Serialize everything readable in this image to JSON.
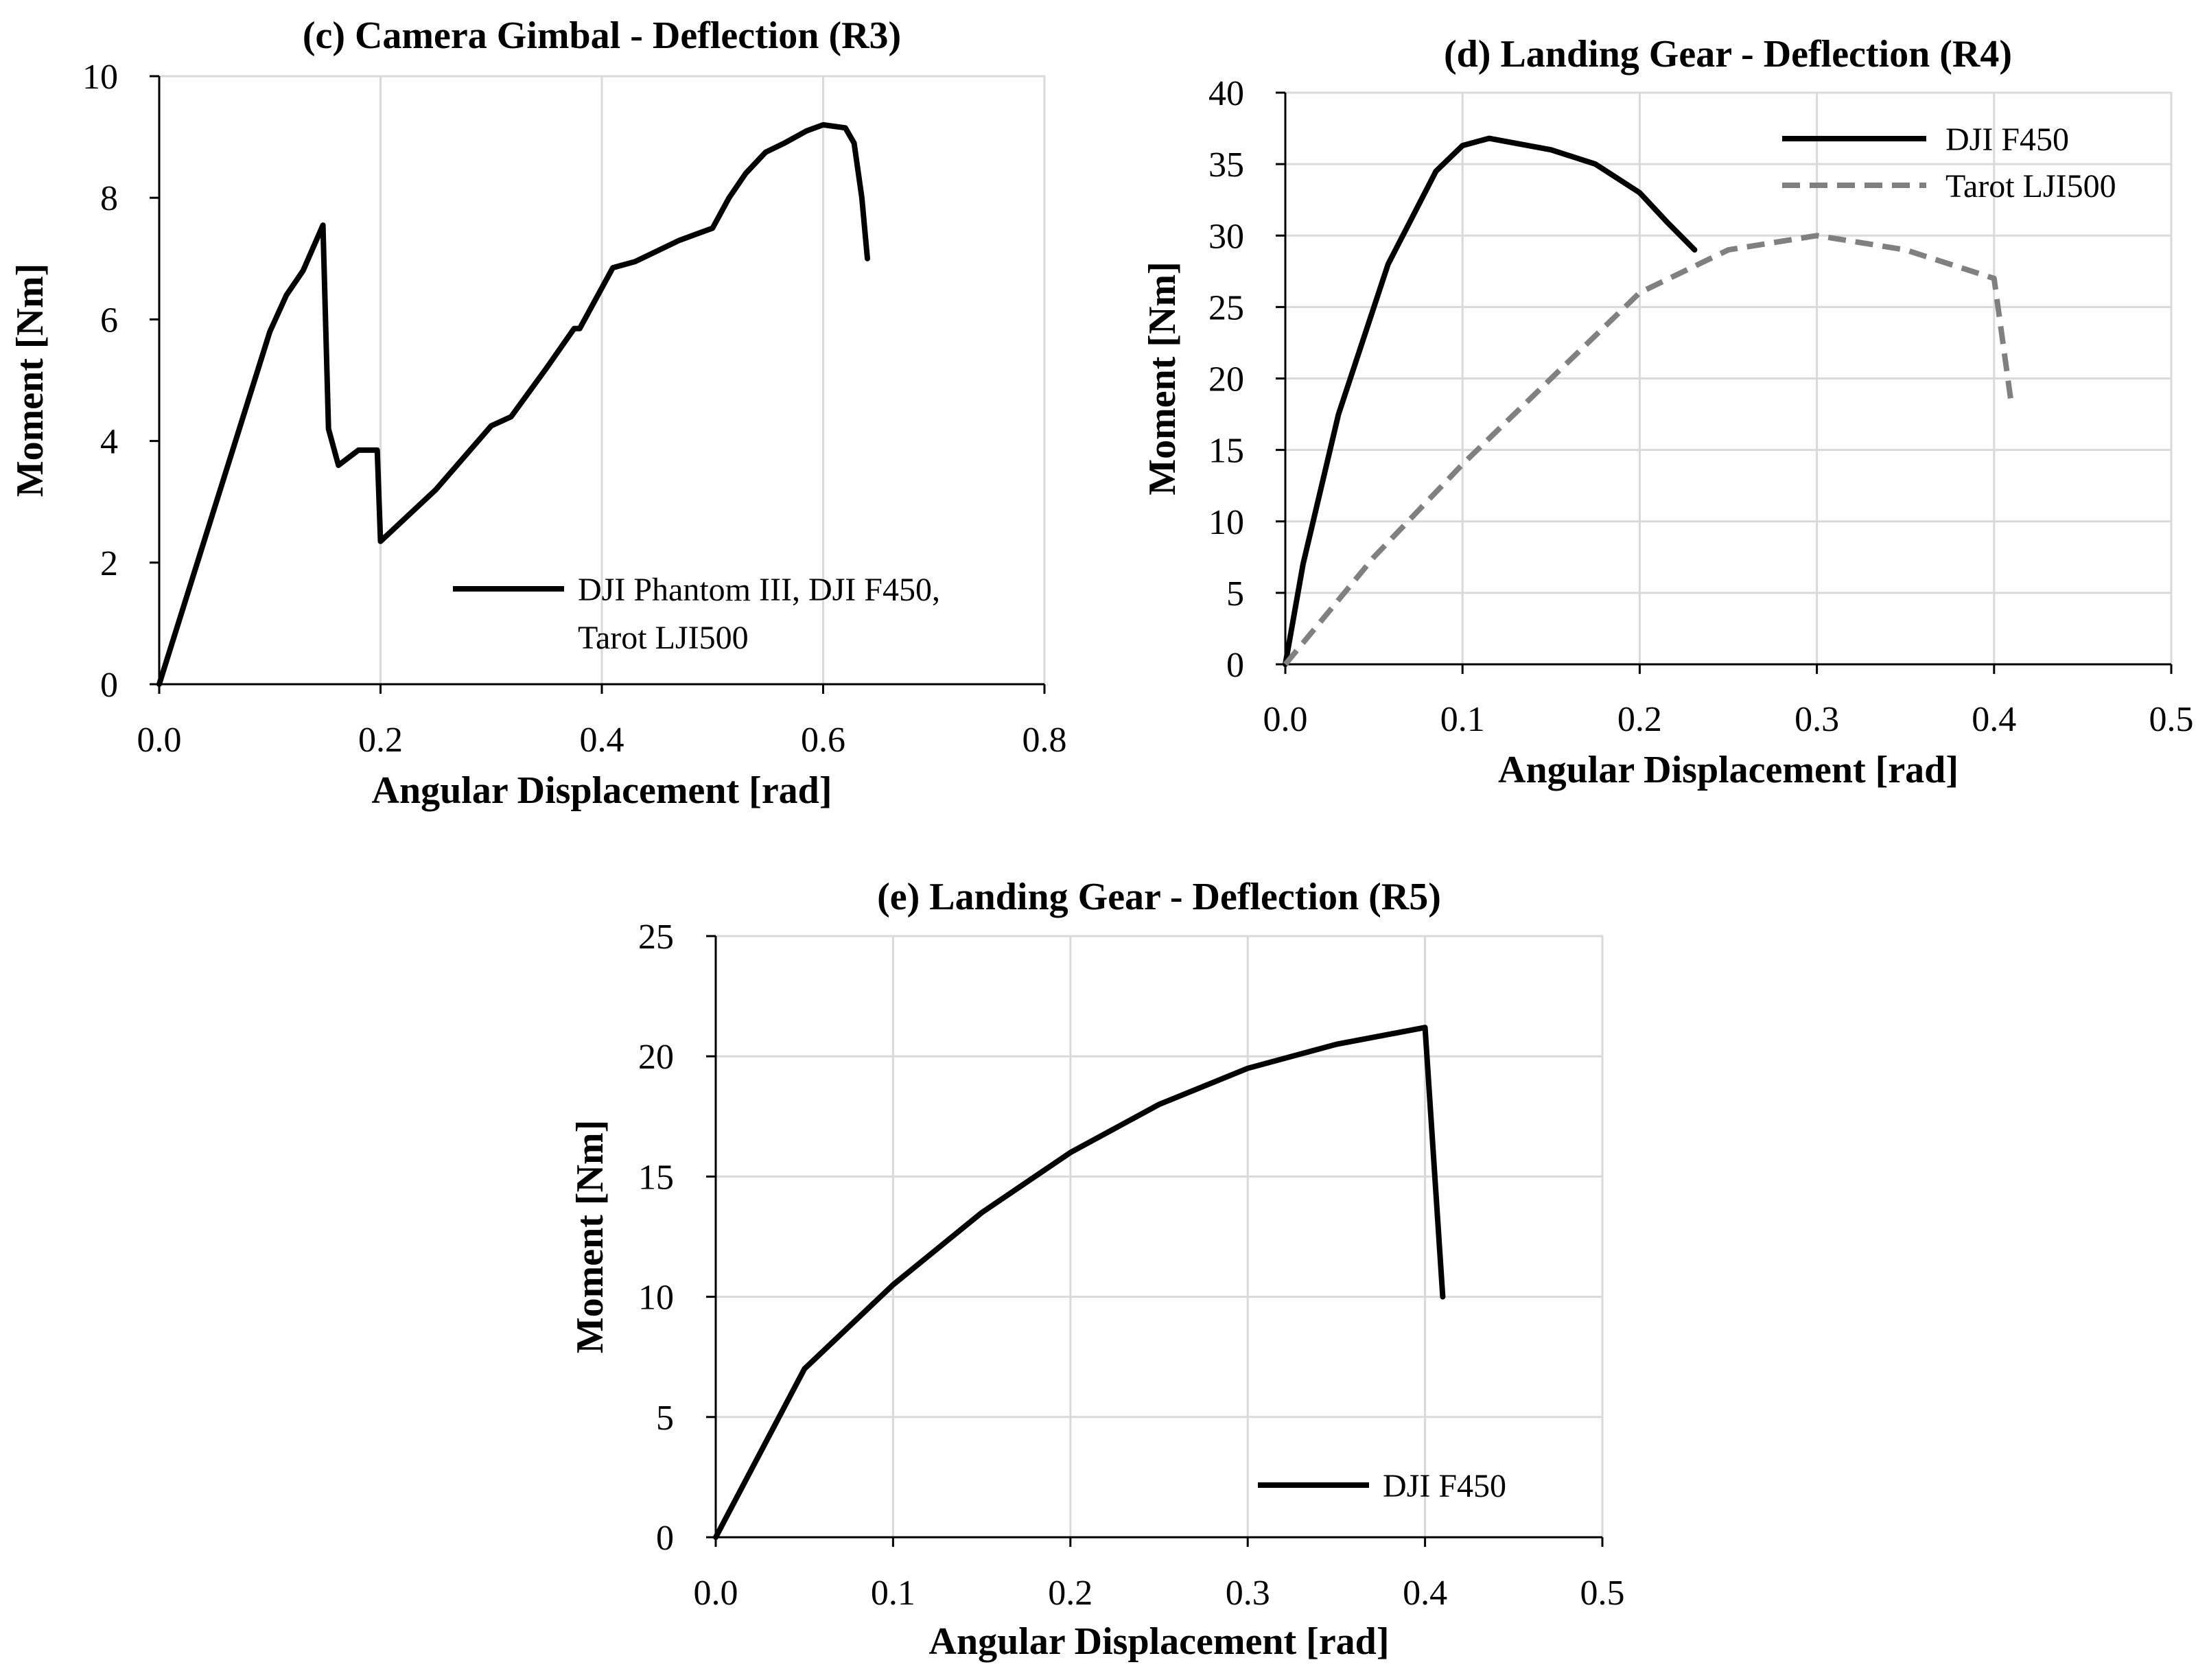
{
  "chart_data": [
    {
      "id": "c",
      "type": "line",
      "title": "(c) Camera Gimbal - Deflection (R3)",
      "xlabel": "Angular Displacement [rad]",
      "ylabel": "Moment [Nm]",
      "xlim": [
        0,
        0.8
      ],
      "ylim": [
        0,
        10
      ],
      "xticks": [
        0,
        0.2,
        0.4,
        0.6,
        0.8
      ],
      "xtick_labels": [
        "0.0",
        "0.2",
        "0.4",
        "0.6",
        "0.8"
      ],
      "yticks": [
        0,
        2,
        4,
        6,
        8,
        10
      ],
      "ytick_labels": [
        "0",
        "2",
        "4",
        "6",
        "8",
        "10"
      ],
      "grid": "vertical",
      "legend_position": "bottom-right",
      "series": [
        {
          "name": "DJI Phantom III, DJI F450, Tarot LJI500",
          "legend_lines": [
            "DJI Phantom III, DJI F450,",
            "Tarot LJI500"
          ],
          "color": "#000000",
          "dash": "solid",
          "points": [
            [
              0,
              0
            ],
            [
              0.05,
              2.9
            ],
            [
              0.1,
              5.8
            ],
            [
              0.115,
              6.4
            ],
            [
              0.13,
              6.8
            ],
            [
              0.148,
              7.55
            ],
            [
              0.153,
              4.2
            ],
            [
              0.162,
              3.6
            ],
            [
              0.18,
              3.85
            ],
            [
              0.197,
              3.85
            ],
            [
              0.2,
              2.35
            ],
            [
              0.25,
              3.2
            ],
            [
              0.3,
              4.25
            ],
            [
              0.318,
              4.4
            ],
            [
              0.35,
              5.2
            ],
            [
              0.375,
              5.85
            ],
            [
              0.38,
              5.85
            ],
            [
              0.41,
              6.85
            ],
            [
              0.43,
              6.95
            ],
            [
              0.47,
              7.3
            ],
            [
              0.5,
              7.5
            ],
            [
              0.515,
              8.0
            ],
            [
              0.53,
              8.4
            ],
            [
              0.548,
              8.75
            ],
            [
              0.565,
              8.9
            ],
            [
              0.585,
              9.1
            ],
            [
              0.6,
              9.2
            ],
            [
              0.62,
              9.15
            ],
            [
              0.628,
              8.9
            ],
            [
              0.635,
              8.0
            ],
            [
              0.64,
              7.0
            ]
          ]
        }
      ]
    },
    {
      "id": "d",
      "type": "line",
      "title": "(d) Landing Gear - Deflection (R4)",
      "xlabel": "Angular Displacement [rad]",
      "ylabel": "Moment [Nm]",
      "xlim": [
        0,
        0.5
      ],
      "ylim": [
        0,
        40
      ],
      "xticks": [
        0,
        0.1,
        0.2,
        0.3,
        0.4,
        0.5
      ],
      "xtick_labels": [
        "0.0",
        "0.1",
        "0.2",
        "0.3",
        "0.4",
        "0.5"
      ],
      "yticks": [
        0,
        5,
        10,
        15,
        20,
        25,
        30,
        35,
        40
      ],
      "ytick_labels": [
        "0",
        "5",
        "10",
        "15",
        "20",
        "25",
        "30",
        "35",
        "40"
      ],
      "grid": "both",
      "legend_position": "top-right",
      "series": [
        {
          "name": "DJI F450",
          "legend_lines": [
            "DJI F450"
          ],
          "color": "#000000",
          "dash": "solid",
          "points": [
            [
              0,
              0
            ],
            [
              0.01,
              7
            ],
            [
              0.03,
              17.5
            ],
            [
              0.058,
              28
            ],
            [
              0.085,
              34.5
            ],
            [
              0.1,
              36.3
            ],
            [
              0.115,
              36.8
            ],
            [
              0.15,
              36
            ],
            [
              0.175,
              35
            ],
            [
              0.2,
              33
            ],
            [
              0.215,
              31
            ],
            [
              0.231,
              29
            ]
          ]
        },
        {
          "name": "Tarot LJI500",
          "legend_lines": [
            "Tarot LJI500"
          ],
          "color": "#808080",
          "dash": "dashed",
          "points": [
            [
              0,
              0
            ],
            [
              0.05,
              7.5
            ],
            [
              0.1,
              14
            ],
            [
              0.15,
              20
            ],
            [
              0.2,
              26
            ],
            [
              0.25,
              29
            ],
            [
              0.3,
              30
            ],
            [
              0.35,
              29
            ],
            [
              0.4,
              27
            ],
            [
              0.41,
              18
            ]
          ]
        }
      ]
    },
    {
      "id": "e",
      "type": "line",
      "title": "(e) Landing Gear - Deflection (R5)",
      "xlabel": "Angular Displacement [rad]",
      "ylabel": "Moment [Nm]",
      "xlim": [
        0,
        0.5
      ],
      "ylim": [
        0,
        25
      ],
      "xticks": [
        0,
        0.1,
        0.2,
        0.3,
        0.4,
        0.5
      ],
      "xtick_labels": [
        "0.0",
        "0.1",
        "0.2",
        "0.3",
        "0.4",
        "0.5"
      ],
      "yticks": [
        0,
        5,
        10,
        15,
        20,
        25
      ],
      "ytick_labels": [
        "0",
        "5",
        "10",
        "15",
        "20",
        "25"
      ],
      "grid": "both",
      "legend_position": "bottom-right",
      "series": [
        {
          "name": "DJI F450",
          "legend_lines": [
            "DJI F450"
          ],
          "color": "#000000",
          "dash": "solid",
          "points": [
            [
              0,
              0
            ],
            [
              0.05,
              7
            ],
            [
              0.1,
              10.5
            ],
            [
              0.15,
              13.5
            ],
            [
              0.2,
              16
            ],
            [
              0.25,
              18
            ],
            [
              0.3,
              19.5
            ],
            [
              0.35,
              20.5
            ],
            [
              0.4,
              21.2
            ],
            [
              0.41,
              10
            ]
          ]
        }
      ]
    }
  ]
}
